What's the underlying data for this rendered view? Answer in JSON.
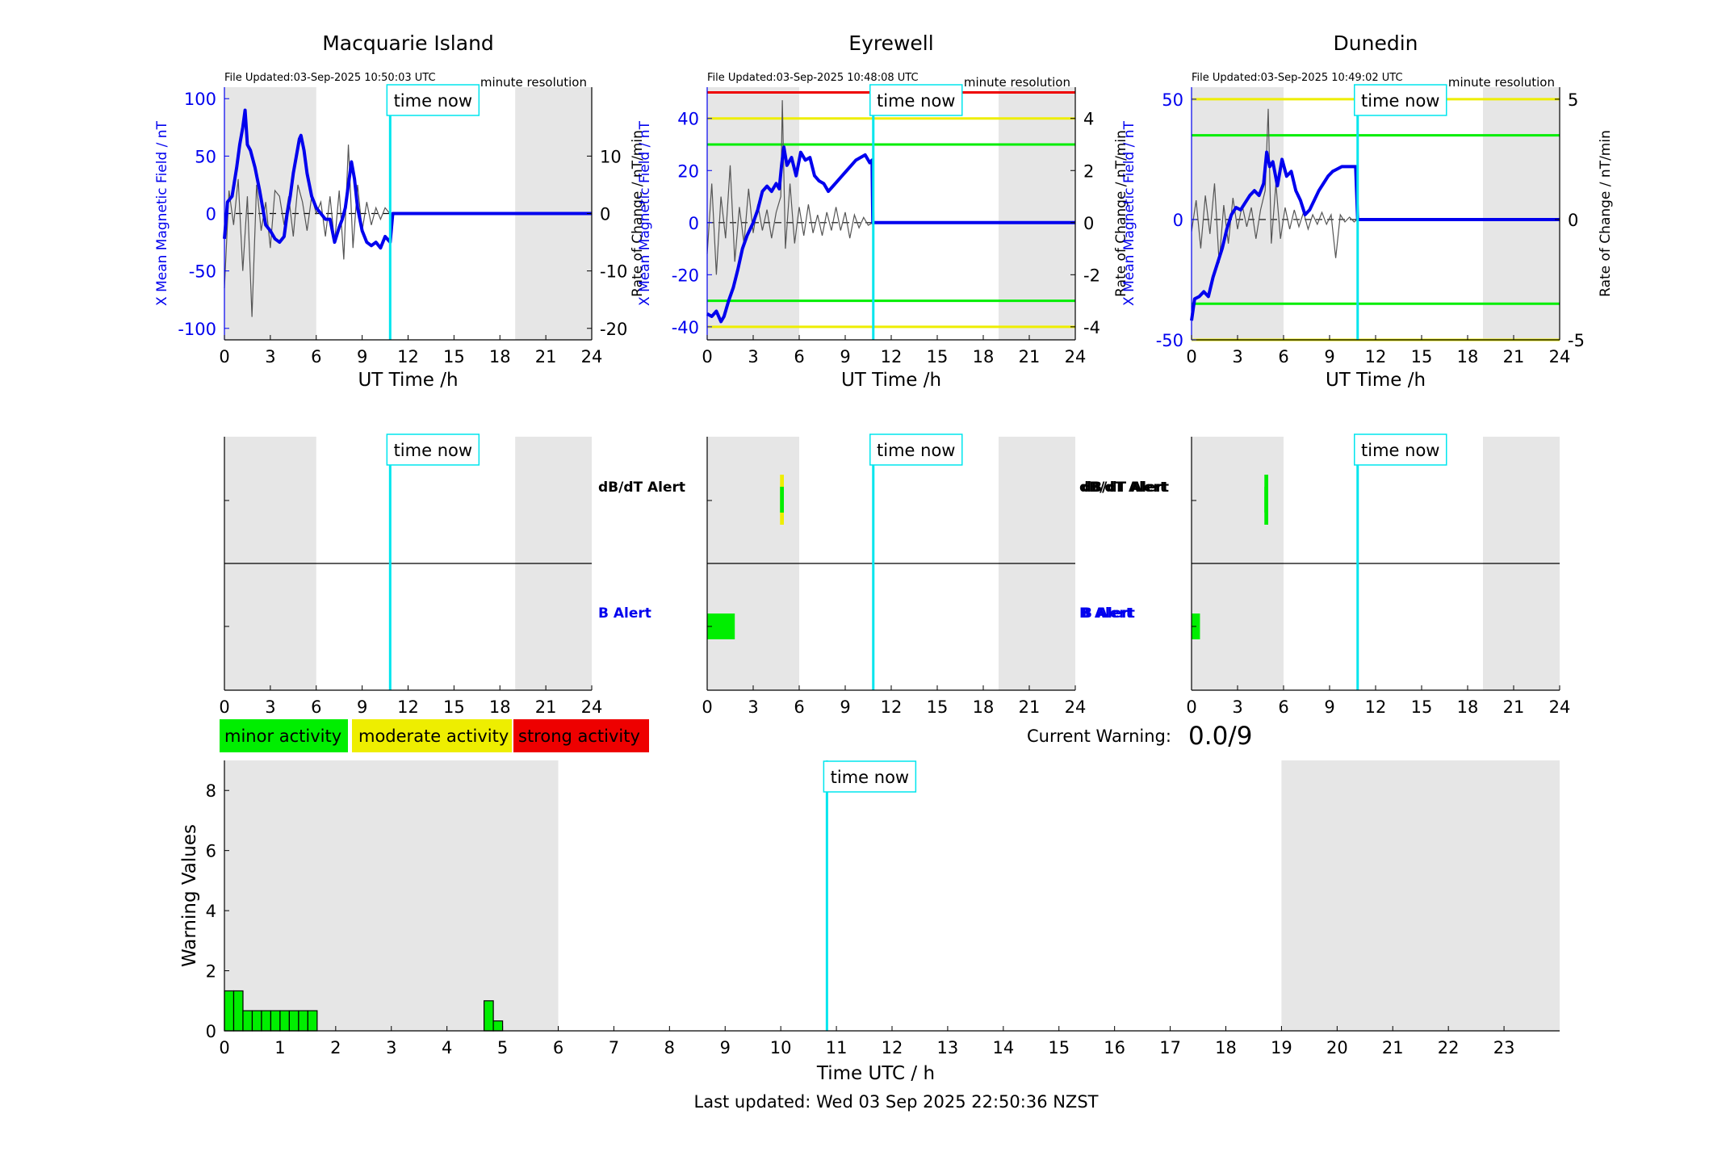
{
  "colors": {
    "blue": "#0000ee",
    "cyan": "#00e5ee",
    "green": "#00ee00",
    "yellow": "#eeee00",
    "red": "#ee0000",
    "night": "#e6e6e6",
    "grey_trace": "#555555"
  },
  "common": {
    "time_now_label": "time now",
    "time_now_hour": 10.83,
    "night_windows": [
      [
        0,
        6
      ],
      [
        19,
        24
      ]
    ],
    "x_ticks": [
      0,
      3,
      6,
      9,
      12,
      15,
      18,
      21,
      24
    ],
    "xlabel": "UT Time /h",
    "left_ylabel": "X Mean Magnetic Field / nT",
    "right_ylabel": "Rate of Change / nT/min",
    "resolution_label": "minute resolution"
  },
  "legend": {
    "minor": "minor activity",
    "moderate": "moderate activity",
    "strong": "strong activity"
  },
  "current_warning": {
    "label": "Current Warning:",
    "value": "0.0/9"
  },
  "footer": "Last updated: Wed 03 Sep 2025 22:50:36 NZST",
  "alert_labels": {
    "dbdt": "dB/dT Alert",
    "b": "B Alert"
  },
  "chart_data": [
    {
      "type": "line",
      "station": "Macquarie Island",
      "file_updated": "File Updated:03-Sep-2025 10:50:03 UTC",
      "xlim": [
        0,
        24
      ],
      "ylim_left": [
        -110,
        110
      ],
      "ylim_right": [
        -22,
        22
      ],
      "left_ticks": [
        100,
        50,
        0,
        -50,
        -100
      ],
      "right_ticks": [
        10,
        0,
        -10,
        -20
      ],
      "thresholds": [],
      "series": [
        {
          "role": "field",
          "x": [
            0,
            0.2,
            0.5,
            0.8,
            1.0,
            1.2,
            1.35,
            1.5,
            1.7,
            2.0,
            2.3,
            2.5,
            2.7,
            3.0,
            3.3,
            3.6,
            3.9,
            4.1,
            4.3,
            4.5,
            4.7,
            4.9,
            5.0,
            5.2,
            5.4,
            5.7,
            6.0,
            6.3,
            6.6,
            6.9,
            7.2,
            7.5,
            7.7,
            7.9,
            8.1,
            8.3,
            8.5,
            8.7,
            9.0,
            9.3,
            9.6,
            9.9,
            10.2,
            10.5,
            10.83,
            11,
            24
          ],
          "y": [
            -22,
            10,
            15,
            40,
            60,
            75,
            90,
            60,
            55,
            40,
            20,
            5,
            -10,
            -15,
            -22,
            -25,
            -20,
            0,
            15,
            35,
            50,
            65,
            68,
            55,
            35,
            15,
            5,
            0,
            -5,
            -5,
            -25,
            -12,
            -5,
            5,
            25,
            45,
            30,
            5,
            -15,
            -25,
            -28,
            -25,
            -30,
            -20,
            -25,
            0,
            0
          ]
        },
        {
          "role": "rate",
          "x": [
            0,
            0.3,
            0.6,
            0.9,
            1.2,
            1.5,
            1.8,
            2.1,
            2.4,
            2.7,
            3.0,
            3.3,
            3.6,
            3.9,
            4.2,
            4.5,
            4.8,
            5.1,
            5.4,
            5.7,
            6.0,
            6.3,
            6.6,
            6.9,
            7.2,
            7.5,
            7.8,
            8.1,
            8.4,
            8.7,
            9.0,
            9.3,
            9.6,
            9.9,
            10.2,
            10.5,
            10.8
          ],
          "y": [
            -13,
            4,
            -2,
            6,
            -10,
            3,
            -18,
            5,
            -3,
            2,
            -6,
            4,
            3,
            -2,
            3,
            -4,
            5,
            2,
            -3,
            3,
            0,
            2,
            -4,
            3,
            -5,
            4,
            -8,
            12,
            -6,
            5,
            -3,
            2,
            -2,
            1,
            -1,
            1,
            0
          ]
        }
      ]
    },
    {
      "type": "line",
      "station": "Eyrewell",
      "file_updated": "File Updated:03-Sep-2025 10:48:08 UTC",
      "xlim": [
        0,
        24
      ],
      "ylim_left": [
        -45,
        52
      ],
      "ylim_right": [
        -4.5,
        5.2
      ],
      "left_ticks": [
        40,
        20,
        0,
        -20,
        -40
      ],
      "right_ticks": [
        4,
        2,
        0,
        -2,
        -4
      ],
      "thresholds": [
        {
          "value": 50,
          "color": "red"
        },
        {
          "value": 40,
          "color": "yellow"
        },
        {
          "value": 30,
          "color": "green"
        },
        {
          "value": -30,
          "color": "green"
        },
        {
          "value": -40,
          "color": "yellow"
        }
      ],
      "series": [
        {
          "role": "field",
          "x": [
            0,
            0.3,
            0.6,
            0.9,
            1.1,
            1.4,
            1.7,
            2.0,
            2.3,
            2.6,
            3.0,
            3.3,
            3.6,
            3.9,
            4.2,
            4.5,
            4.7,
            4.85,
            5.0,
            5.2,
            5.5,
            5.8,
            6.1,
            6.4,
            6.7,
            7.0,
            7.3,
            7.6,
            7.9,
            8.2,
            8.5,
            8.8,
            9.1,
            9.4,
            9.7,
            10.0,
            10.3,
            10.6,
            10.75,
            10.8,
            11,
            24
          ],
          "y": [
            -35,
            -36,
            -34,
            -38,
            -36,
            -30,
            -25,
            -18,
            -10,
            -5,
            0,
            5,
            12,
            14,
            12,
            15,
            13,
            22,
            29,
            22,
            25,
            18,
            27,
            24,
            25,
            18,
            16,
            15,
            12,
            14,
            16,
            18,
            20,
            22,
            24,
            25,
            26,
            23,
            24,
            0,
            0,
            0
          ]
        },
        {
          "role": "rate",
          "x": [
            0,
            0.3,
            0.6,
            0.9,
            1.2,
            1.5,
            1.8,
            2.1,
            2.4,
            2.7,
            3.0,
            3.3,
            3.6,
            3.9,
            4.2,
            4.5,
            4.8,
            4.9,
            5.1,
            5.4,
            5.7,
            6.0,
            6.3,
            6.6,
            6.9,
            7.2,
            7.5,
            7.8,
            8.1,
            8.4,
            8.7,
            9.0,
            9.3,
            9.6,
            9.9,
            10.2,
            10.5,
            10.8
          ],
          "y": [
            -1.2,
            1.5,
            -2.0,
            1.0,
            -0.6,
            2.2,
            -1.5,
            0.6,
            -0.8,
            1.3,
            -0.4,
            0.7,
            -0.3,
            0.5,
            -0.6,
            0.4,
            1.0,
            4.7,
            -1.0,
            1.5,
            -0.8,
            0.6,
            -0.5,
            0.7,
            -0.4,
            0.3,
            -0.5,
            0.4,
            -0.3,
            0.6,
            -0.3,
            0.4,
            -0.6,
            0.3,
            -0.2,
            0.2,
            -0.1,
            0
          ]
        }
      ]
    },
    {
      "type": "line",
      "station": "Dunedin",
      "file_updated": "File Updated:03-Sep-2025 10:49:02 UTC",
      "xlim": [
        0,
        24
      ],
      "ylim_left": [
        -50,
        55
      ],
      "ylim_right": [
        -5,
        5.5
      ],
      "left_ticks": [
        50,
        0,
        -50
      ],
      "right_ticks": [
        5,
        0,
        -5
      ],
      "thresholds": [
        {
          "value": 50,
          "color": "yellow"
        },
        {
          "value": 35,
          "color": "green"
        },
        {
          "value": -35,
          "color": "green"
        },
        {
          "value": -50,
          "color": "yellow"
        }
      ],
      "series": [
        {
          "role": "field",
          "x": [
            0,
            0.2,
            0.5,
            0.8,
            1.1,
            1.4,
            1.7,
            2.0,
            2.3,
            2.6,
            2.9,
            3.2,
            3.5,
            3.8,
            4.1,
            4.4,
            4.7,
            4.9,
            5.1,
            5.3,
            5.6,
            5.9,
            6.2,
            6.5,
            6.8,
            7.1,
            7.4,
            7.7,
            8.0,
            8.3,
            8.6,
            8.9,
            9.2,
            9.5,
            9.8,
            10.1,
            10.4,
            10.7,
            10.83,
            11,
            24
          ],
          "y": [
            -42,
            -33,
            -32,
            -30,
            -32,
            -24,
            -18,
            -12,
            -4,
            2,
            5,
            4,
            7,
            10,
            12,
            10,
            15,
            28,
            22,
            24,
            14,
            25,
            18,
            20,
            12,
            8,
            2,
            4,
            8,
            12,
            15,
            18,
            20,
            21,
            22,
            22,
            22,
            22,
            0,
            0,
            0
          ]
        },
        {
          "role": "rate",
          "x": [
            0,
            0.3,
            0.6,
            0.9,
            1.2,
            1.5,
            1.8,
            2.1,
            2.4,
            2.7,
            3.0,
            3.3,
            3.6,
            3.9,
            4.2,
            4.5,
            4.8,
            5.0,
            5.2,
            5.5,
            5.8,
            6.1,
            6.4,
            6.7,
            7.0,
            7.3,
            7.6,
            7.9,
            8.2,
            8.5,
            8.8,
            9.1,
            9.4,
            9.7,
            10.0,
            10.3,
            10.6,
            10.8
          ],
          "y": [
            -0.5,
            0.8,
            -1.2,
            1.0,
            -0.6,
            1.5,
            -1.8,
            0.6,
            -1.0,
            0.9,
            -0.4,
            0.6,
            -0.3,
            0.5,
            -0.8,
            0.4,
            1.2,
            4.6,
            -1.0,
            1.5,
            -0.8,
            0.5,
            -0.4,
            0.4,
            -0.3,
            0.3,
            -0.4,
            0.2,
            -0.2,
            0.3,
            -0.2,
            0.2,
            -1.6,
            0.2,
            -0.1,
            0.1,
            -0.1,
            0
          ]
        }
      ]
    },
    {
      "type": "bar",
      "name": "alerts",
      "panels": [
        {
          "station": "Macquarie Island",
          "dbdt": [],
          "b": []
        },
        {
          "station": "Eyrewell",
          "dbdt": [
            {
              "x0": 4.75,
              "x1": 5.0,
              "outer": "yellow",
              "inner": "green"
            }
          ],
          "b": [
            {
              "x0": 0,
              "x1": 1.8,
              "color": "green"
            }
          ]
        },
        {
          "station": "Dunedin",
          "dbdt": [
            {
              "x0": 4.75,
              "x1": 5.0,
              "outer": "green",
              "inner": "green"
            }
          ],
          "b": [
            {
              "x0": 0,
              "x1": 0.55,
              "color": "green"
            }
          ]
        }
      ]
    },
    {
      "type": "bar",
      "name": "warning_values",
      "ylabel": "Warning Values",
      "xlabel": "Time UTC / h",
      "xlim": [
        0,
        24
      ],
      "ylim": [
        0,
        9
      ],
      "y_ticks": [
        0,
        2,
        4,
        6,
        8
      ],
      "x_ticks": [
        0,
        1,
        2,
        3,
        4,
        5,
        6,
        7,
        8,
        9,
        10,
        11,
        12,
        13,
        14,
        15,
        16,
        17,
        18,
        19,
        20,
        21,
        22,
        23
      ],
      "night_windows": [
        [
          0,
          6
        ],
        [
          19,
          24
        ]
      ],
      "bar_width": 0.1667,
      "bars": [
        {
          "x": 0.0,
          "value": 1.33
        },
        {
          "x": 0.1667,
          "value": 1.33
        },
        {
          "x": 0.3333,
          "value": 0.67
        },
        {
          "x": 0.5,
          "value": 0.67
        },
        {
          "x": 0.6667,
          "value": 0.67
        },
        {
          "x": 0.8333,
          "value": 0.67
        },
        {
          "x": 1.0,
          "value": 0.67
        },
        {
          "x": 1.1667,
          "value": 0.67
        },
        {
          "x": 1.3333,
          "value": 0.67
        },
        {
          "x": 1.5,
          "value": 0.67
        },
        {
          "x": 4.6667,
          "value": 1.0
        },
        {
          "x": 4.8333,
          "value": 0.33
        }
      ]
    }
  ]
}
